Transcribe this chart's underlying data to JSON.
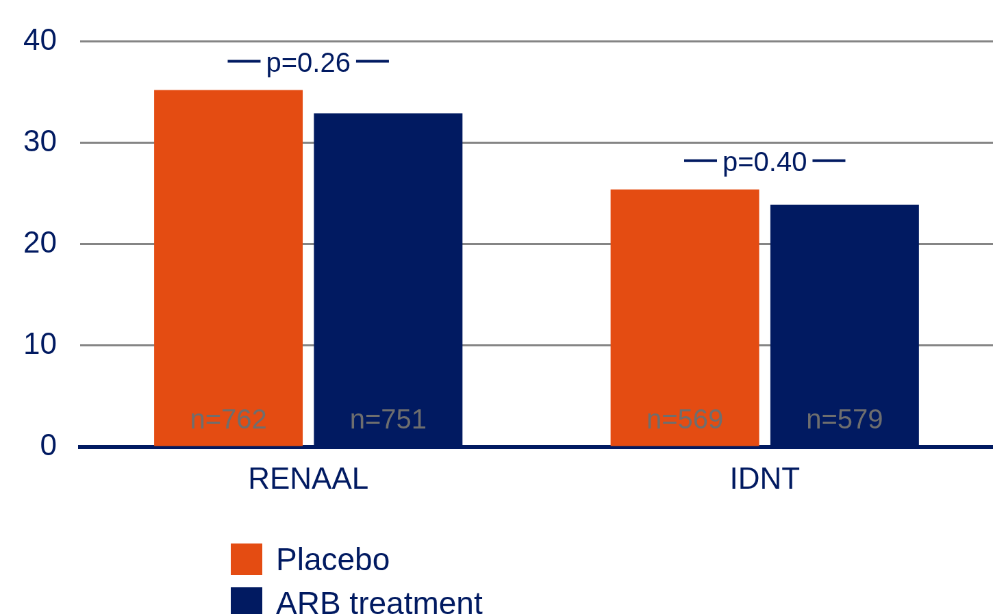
{
  "chart_data": {
    "type": "bar",
    "categories": [
      "RENAAL",
      "IDNT"
    ],
    "series": [
      {
        "name": "Placebo",
        "color": "#e44c12",
        "values": [
          35.2,
          25.4
        ]
      },
      {
        "name": "ARB treatment",
        "color": "#011a61",
        "values": [
          32.9,
          23.9
        ]
      }
    ],
    "ylim": [
      0,
      40
    ],
    "yticks": [
      0,
      10,
      20,
      30,
      40
    ],
    "grid": "y",
    "legend": "bottom",
    "annotations": [
      "p=0.26",
      "p=0.40",
      "n=762",
      "n=751",
      "n=569",
      "n=579"
    ]
  }
}
